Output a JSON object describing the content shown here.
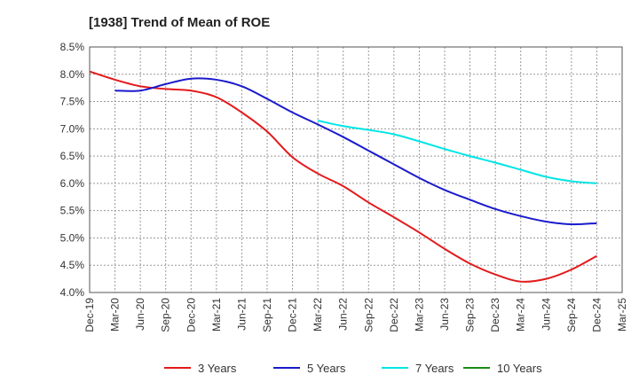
{
  "chart_data": {
    "type": "line",
    "title": "[1938]  Trend of Mean of ROE",
    "xlabel": "",
    "ylabel": "",
    "ylim": [
      4.0,
      8.5
    ],
    "y_ticks": [
      4.0,
      4.5,
      5.0,
      5.5,
      6.0,
      6.5,
      7.0,
      7.5,
      8.0,
      8.5
    ],
    "y_tick_labels": [
      "4.0%",
      "4.5%",
      "5.0%",
      "5.5%",
      "6.0%",
      "6.5%",
      "7.0%",
      "7.5%",
      "8.0%",
      "8.5%"
    ],
    "categories": [
      "Dec-19",
      "Mar-20",
      "Jun-20",
      "Sep-20",
      "Dec-20",
      "Mar-21",
      "Jun-21",
      "Sep-21",
      "Dec-21",
      "Mar-22",
      "Jun-22",
      "Sep-22",
      "Dec-22",
      "Mar-23",
      "Jun-23",
      "Sep-23",
      "Dec-23",
      "Mar-24",
      "Jun-24",
      "Sep-24",
      "Dec-24",
      "Mar-25"
    ],
    "grid": true,
    "legend_position": "bottom",
    "series": [
      {
        "name": "3 Years",
        "color": "#e31a1c",
        "values": [
          8.05,
          7.9,
          7.78,
          7.73,
          7.7,
          7.58,
          7.3,
          6.95,
          6.48,
          6.18,
          5.95,
          5.65,
          5.38,
          5.1,
          4.8,
          4.53,
          4.33,
          4.2,
          4.25,
          4.42,
          4.67,
          null
        ]
      },
      {
        "name": "5 Years",
        "color": "#1a1acc",
        "values": [
          null,
          7.7,
          7.7,
          7.82,
          7.92,
          7.9,
          7.78,
          7.55,
          7.3,
          7.08,
          6.85,
          6.6,
          6.35,
          6.1,
          5.88,
          5.7,
          5.53,
          5.4,
          5.3,
          5.25,
          5.27,
          null
        ]
      },
      {
        "name": "7 Years",
        "color": "#00e5e5",
        "values": [
          null,
          null,
          null,
          null,
          null,
          null,
          null,
          null,
          null,
          7.15,
          7.05,
          6.98,
          6.9,
          6.77,
          6.63,
          6.5,
          6.38,
          6.25,
          6.12,
          6.04,
          6.0,
          null
        ]
      },
      {
        "name": "10 Years",
        "color": "#1a8c1a",
        "values": [
          null,
          null,
          null,
          null,
          null,
          null,
          null,
          null,
          null,
          null,
          null,
          null,
          null,
          null,
          null,
          null,
          null,
          null,
          null,
          null,
          null,
          null
        ]
      }
    ]
  }
}
